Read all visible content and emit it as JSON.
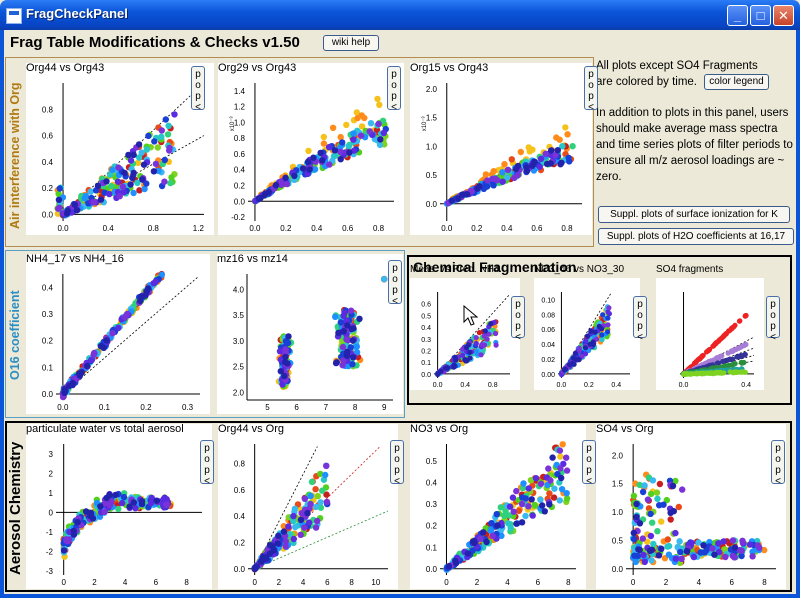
{
  "window": {
    "title": "FragCheckPanel",
    "buttons": {
      "minimize": "_",
      "maximize": "□",
      "close": "✕"
    }
  },
  "heading": "Frag Table Modifications & Checks v1.50",
  "wiki_button": "wiki help",
  "notes": {
    "line1a": "All plots except SO4 Fragments",
    "line1b": "are colored by time.",
    "color_legend_button": "color legend",
    "para2": "In addition to plots in this panel, users should make average mass spectra and time series plots of filter periods to ensure all m/z aerosol loadings are ~ zero."
  },
  "suppl_buttons": [
    "Suppl. plots of surface ionization for K",
    "Suppl. plots of H2O coefficients at 16,17"
  ],
  "groups": {
    "air": "Air interference with Org",
    "o16": "O16 coefficient",
    "chem": "Chemical Fragmentation",
    "aero": "Aerosol Chemistry"
  },
  "pop_label": "pop<",
  "colors": {
    "time": [
      "#f5c21b",
      "#ff8c1a",
      "#e84a1a",
      "#c81e1e",
      "#7ed321",
      "#52d01b",
      "#2fd17c",
      "#27c7c7",
      "#3ab8f0",
      "#1e90ff",
      "#1a3fd6",
      "#5a2be0",
      "#7a33d8",
      "#2222aa"
    ],
    "so4": [
      "#ee2222",
      "#a77cd6",
      "#333399",
      "#2a8f3c",
      "#20a0a0",
      "#7ed321"
    ]
  },
  "plots": [
    {
      "id": "org44-vs-org43",
      "title": "Org44 vs Org43",
      "xticks": [
        "0.0",
        "0.4",
        "0.8",
        "1.2"
      ],
      "yticks": [
        "0.0",
        "0.2",
        "0.4",
        "0.6",
        "0.8"
      ],
      "xmax": 1.25,
      "ymax": 1.0,
      "kind": "fan1"
    },
    {
      "id": "org29-vs-org43",
      "title": "Org29 vs Org43",
      "xticks": [
        "0.0",
        "0.2",
        "0.4",
        "0.6",
        "0.8"
      ],
      "yticks": [
        "-0.2",
        "0.0",
        "0.2",
        "0.4",
        "0.6",
        "0.8",
        "1.0",
        "1.2",
        "1.4"
      ],
      "ymult": "x10⁻³",
      "xmax": 0.9,
      "ymax": 1.5,
      "ymin": -0.25,
      "kind": "curve1"
    },
    {
      "id": "org15-vs-org43",
      "title": "Org15 vs Org43",
      "xticks": [
        "0.0",
        "0.2",
        "0.4",
        "0.6",
        "0.8"
      ],
      "yticks": [
        "0.0",
        "0.5",
        "1.0",
        "1.5",
        "2.0"
      ],
      "ymult": "x10⁻³",
      "xmax": 0.9,
      "ymax": 2.1,
      "ymin": -0.3,
      "kind": "curve1"
    },
    {
      "id": "nh4-17-vs-nh4-16",
      "title": "NH4_17 vs NH4_16",
      "xticks": [
        "0.0",
        "0.1",
        "0.2",
        "0.3"
      ],
      "yticks": [
        "0.0",
        "0.1",
        "0.2",
        "0.3",
        "0.4"
      ],
      "xmax": 0.33,
      "ymax": 0.45,
      "kind": "linear"
    },
    {
      "id": "mz16-vs-mz14",
      "title": "mz16 vs mz14",
      "xticks": [
        "5",
        "6",
        "7",
        "8",
        "9"
      ],
      "yticks": [
        "2.0",
        "2.5",
        "3.0",
        "3.5",
        "4.0"
      ],
      "xmin": 4.3,
      "xmax": 9.3,
      "ymin": 1.85,
      "ymax": 4.3,
      "kind": "clusters"
    },
    {
      "id": "meas-vs-pred-nh4",
      "title": "Meas. vs Pred. NH4",
      "xticks": [
        "0.0",
        "0.4",
        "0.8"
      ],
      "yticks": [
        "0.0",
        "0.1",
        "0.2",
        "0.3",
        "0.4",
        "0.5",
        "0.6"
      ],
      "xmax": 1.05,
      "ymax": 0.7,
      "kind": "nh4"
    },
    {
      "id": "no3-46-vs-no3-30",
      "title": "NO3_46 vs NO3_30",
      "xticks": [
        "0.0",
        "0.2",
        "0.4"
      ],
      "yticks": [
        "0.00",
        "0.02",
        "0.04",
        "0.06",
        "0.08",
        "0.10"
      ],
      "xmax": 0.5,
      "ymax": 0.11,
      "kind": "steep"
    },
    {
      "id": "so4-fragments",
      "title": "SO4 fragments",
      "xticks": [
        "0.0",
        "0.4"
      ],
      "yticks": [],
      "xmax": 0.45,
      "ymax": 1.0,
      "kind": "so4"
    },
    {
      "id": "particulate-water-vs-total-aerosol",
      "title": "particulate water vs total aerosol",
      "xticks": [
        "0",
        "2",
        "4",
        "6",
        "8"
      ],
      "yticks": [
        "-3",
        "-2",
        "-1",
        "0",
        "1",
        "2",
        "3"
      ],
      "xmin": -0.5,
      "xmax": 9,
      "ymin": -3.2,
      "ymax": 3.5,
      "kind": "water"
    },
    {
      "id": "org44-vs-org",
      "title": "Org44 vs Org",
      "xticks": [
        "0",
        "2",
        "4",
        "6",
        "8",
        "10"
      ],
      "yticks": [
        "0.0",
        "0.2",
        "0.4",
        "0.6",
        "0.8"
      ],
      "xmax": 11,
      "ymax": 0.95,
      "kind": "org44"
    },
    {
      "id": "no3-vs-org",
      "title": "NO3 vs Org",
      "xticks": [
        "0",
        "2",
        "4",
        "6",
        "8"
      ],
      "yticks": [
        "0.0",
        "0.1",
        "0.2",
        "0.3",
        "0.4",
        "0.5"
      ],
      "xmax": 8.5,
      "ymax": 0.58,
      "kind": "no3"
    },
    {
      "id": "so4-vs-org",
      "title": "SO4 vs Org",
      "xticks": [
        "0",
        "2",
        "4",
        "6",
        "8"
      ],
      "yticks": [
        "0.0",
        "0.5",
        "1.0",
        "1.5",
        "2.0"
      ],
      "xmax": 8.7,
      "ymax": 2.2,
      "kind": "so4org"
    }
  ]
}
